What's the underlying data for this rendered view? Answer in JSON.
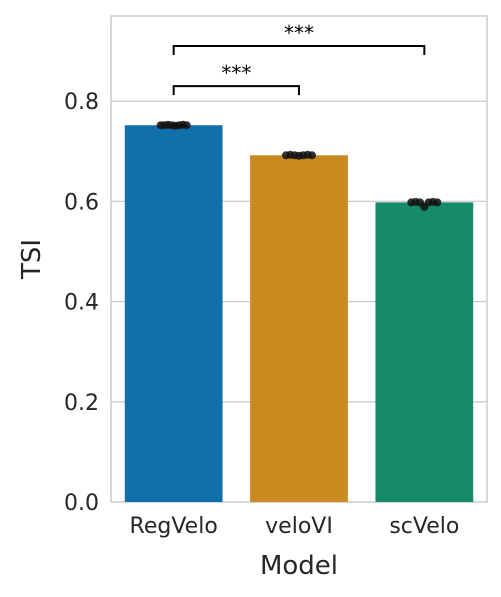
{
  "chart_data": {
    "type": "bar",
    "title": "",
    "xlabel": "Model",
    "ylabel": "TSI",
    "categories": [
      "RegVelo",
      "veloVI",
      "scVelo"
    ],
    "values": [
      0.752,
      0.692,
      0.598
    ],
    "colors": [
      "#1170aa",
      "#c98a1f",
      "#168b68"
    ],
    "ylim": [
      0,
      0.97
    ],
    "yticks": [
      0.0,
      0.2,
      0.4,
      0.6,
      0.8
    ],
    "ytick_labels": [
      "0.0",
      "0.2",
      "0.4",
      "0.6",
      "0.8"
    ],
    "grid": "horizontal",
    "points": [
      [
        0.752,
        0.752,
        0.753,
        0.752,
        0.751,
        0.752,
        0.753,
        0.752
      ],
      [
        0.692,
        0.693,
        0.692,
        0.691,
        0.692,
        0.693,
        0.692
      ],
      [
        0.598,
        0.599,
        0.598,
        0.589,
        0.598,
        0.599,
        0.598
      ]
    ],
    "significance": [
      {
        "from": 0,
        "to": 1,
        "label": "***",
        "y": 0.83
      },
      {
        "from": 0,
        "to": 2,
        "label": "***",
        "y": 0.91
      }
    ]
  }
}
